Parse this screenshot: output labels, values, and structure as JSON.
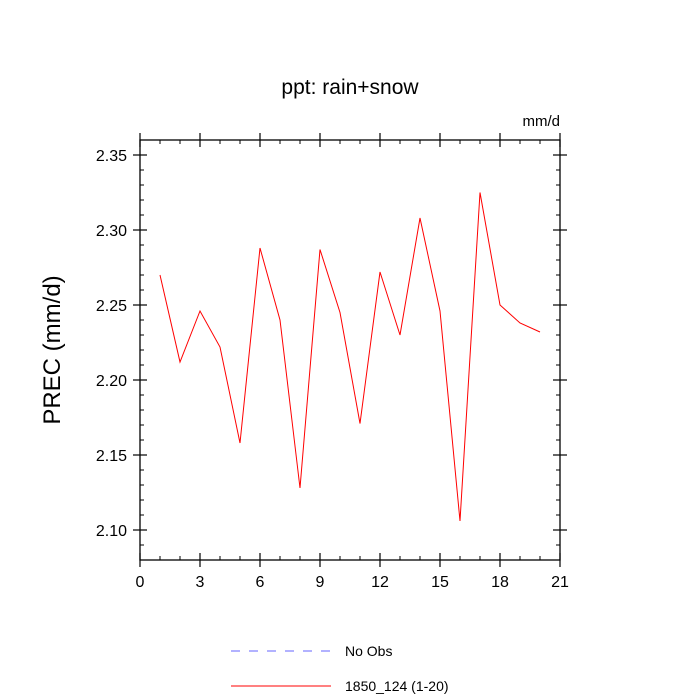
{
  "chart_data": {
    "type": "line",
    "title": "ppt: rain+snow",
    "units_label": "mm/d",
    "ylabel": "PREC  (mm/d)",
    "xlabel": "",
    "xlim": [
      0,
      21
    ],
    "ylim": [
      2.08,
      2.36
    ],
    "x_ticks": [
      0,
      3,
      6,
      9,
      12,
      15,
      18,
      21
    ],
    "x_tick_labels": [
      "0",
      "3",
      "6",
      "9",
      "12",
      "15",
      "18",
      "21"
    ],
    "y_ticks": [
      2.1,
      2.15,
      2.2,
      2.25,
      2.3,
      2.35
    ],
    "y_tick_labels": [
      "2.10",
      "2.15",
      "2.20",
      "2.25",
      "2.30",
      "2.35"
    ],
    "grid": false,
    "legend_position": "bottom-center",
    "legend": [
      {
        "name": "No Obs",
        "color": "#6666ff",
        "style": "dashed"
      },
      {
        "name": "1850_124 (1-20)",
        "color": "#ff0000",
        "style": "solid"
      }
    ],
    "series": [
      {
        "name": "1850_124 (1-20)",
        "color": "#ff0000",
        "x": [
          1,
          2,
          3,
          4,
          5,
          6,
          7,
          8,
          9,
          10,
          11,
          12,
          13,
          14,
          15,
          16,
          17,
          18,
          19,
          20
        ],
        "values": [
          2.27,
          2.212,
          2.246,
          2.222,
          2.158,
          2.288,
          2.24,
          2.128,
          2.287,
          2.245,
          2.171,
          2.272,
          2.23,
          2.308,
          2.246,
          2.106,
          2.325,
          2.25,
          2.238,
          2.232
        ]
      }
    ]
  }
}
